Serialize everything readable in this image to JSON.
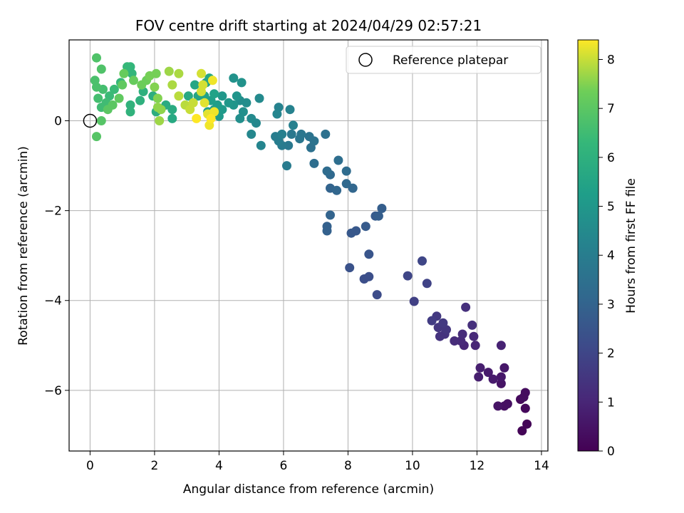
{
  "chart_data": {
    "type": "scatter",
    "title": "FOV centre drift starting at 2024/04/29 02:57:21",
    "xlabel": "Angular distance from reference (arcmin)",
    "ylabel": "Rotation from reference (arcmin)",
    "xlim": [
      -0.65,
      14.2
    ],
    "ylim": [
      -7.35,
      1.8
    ],
    "xticks": [
      "0",
      "2",
      "4",
      "6",
      "8",
      "10",
      "12",
      "14"
    ],
    "xtick_values": [
      0,
      2,
      4,
      6,
      8,
      10,
      12,
      14
    ],
    "yticks": [
      "−6",
      "−4",
      "−2",
      "0"
    ],
    "ytick_values": [
      -6,
      -4,
      -2,
      0
    ],
    "grid": true,
    "legend": {
      "placement": "top-right",
      "label": "Reference platepar"
    },
    "reference_point": {
      "x": 0,
      "y": 0
    },
    "colorbar": {
      "label": "Hours from first FF file",
      "colormap": "viridis",
      "range": [
        0,
        8.4
      ],
      "ticks": [
        "0",
        "1",
        "2",
        "3",
        "4",
        "5",
        "6",
        "7",
        "8"
      ],
      "tick_values": [
        0,
        1,
        2,
        3,
        4,
        5,
        6,
        7,
        8
      ]
    },
    "points": [
      [
        13.4,
        -6.9,
        0.1
      ],
      [
        13.55,
        -6.75,
        0.1
      ],
      [
        13.5,
        -6.4,
        0.2
      ],
      [
        13.35,
        -6.2,
        0.2
      ],
      [
        13.45,
        -6.15,
        0.3
      ],
      [
        13.5,
        -6.05,
        0.3
      ],
      [
        12.95,
        -6.3,
        0.4
      ],
      [
        12.85,
        -6.35,
        0.4
      ],
      [
        12.65,
        -6.35,
        0.5
      ],
      [
        12.75,
        -5.85,
        0.5
      ],
      [
        12.75,
        -5.7,
        0.6
      ],
      [
        12.85,
        -5.5,
        0.6
      ],
      [
        12.5,
        -5.75,
        0.7
      ],
      [
        12.35,
        -5.6,
        0.7
      ],
      [
        12.05,
        -5.7,
        0.8
      ],
      [
        12.1,
        -5.5,
        0.8
      ],
      [
        12.75,
        -5.0,
        0.9
      ],
      [
        11.95,
        -5.0,
        1.0
      ],
      [
        11.6,
        -5.0,
        1.0
      ],
      [
        11.5,
        -4.9,
        1.1
      ],
      [
        11.9,
        -4.8,
        1.1
      ],
      [
        11.55,
        -4.75,
        1.2
      ],
      [
        11.3,
        -4.9,
        1.2
      ],
      [
        11.85,
        -4.55,
        1.3
      ],
      [
        11.65,
        -4.15,
        1.3
      ],
      [
        11.0,
        -4.75,
        1.4
      ],
      [
        10.85,
        -4.8,
        1.4
      ],
      [
        11.05,
        -4.65,
        1.5
      ],
      [
        10.8,
        -4.6,
        1.5
      ],
      [
        10.95,
        -4.5,
        1.6
      ],
      [
        10.75,
        -4.35,
        1.6
      ],
      [
        10.6,
        -4.45,
        1.7
      ],
      [
        10.05,
        -4.02,
        1.8
      ],
      [
        10.45,
        -3.62,
        1.9
      ],
      [
        10.3,
        -3.12,
        2.0
      ],
      [
        9.85,
        -3.45,
        2.0
      ],
      [
        8.9,
        -3.87,
        2.2
      ],
      [
        8.5,
        -3.52,
        2.3
      ],
      [
        8.65,
        -3.47,
        2.3
      ],
      [
        8.05,
        -3.27,
        2.4
      ],
      [
        8.65,
        -2.97,
        2.5
      ],
      [
        8.1,
        -2.5,
        2.6
      ],
      [
        8.25,
        -2.45,
        2.6
      ],
      [
        8.55,
        -2.35,
        2.7
      ],
      [
        8.85,
        -2.12,
        2.7
      ],
      [
        8.95,
        -2.12,
        2.8
      ],
      [
        9.05,
        -1.95,
        2.8
      ],
      [
        7.35,
        -2.45,
        2.9
      ],
      [
        7.35,
        -2.35,
        2.9
      ],
      [
        7.45,
        -2.1,
        3.0
      ],
      [
        7.45,
        -1.5,
        3.0
      ],
      [
        7.65,
        -1.55,
        3.1
      ],
      [
        8.15,
        -1.5,
        3.1
      ],
      [
        7.95,
        -1.4,
        3.2
      ],
      [
        7.45,
        -1.2,
        3.2
      ],
      [
        7.35,
        -1.12,
        3.3
      ],
      [
        7.95,
        -1.12,
        3.3
      ],
      [
        7.7,
        -0.88,
        3.4
      ],
      [
        6.95,
        -0.95,
        3.4
      ],
      [
        7.3,
        -0.3,
        3.5
      ],
      [
        6.85,
        -0.6,
        3.5
      ],
      [
        6.95,
        -0.45,
        3.6
      ],
      [
        6.8,
        -0.35,
        3.6
      ],
      [
        6.5,
        -0.4,
        3.7
      ],
      [
        6.55,
        -0.3,
        3.7
      ],
      [
        6.25,
        -0.3,
        3.8
      ],
      [
        6.15,
        -0.55,
        3.8
      ],
      [
        6.1,
        -1.0,
        3.9
      ],
      [
        5.95,
        -0.55,
        3.9
      ],
      [
        5.85,
        -0.45,
        4.0
      ],
      [
        5.75,
        -0.35,
        4.0
      ],
      [
        5.95,
        -0.3,
        4.1
      ],
      [
        6.3,
        -0.1,
        4.1
      ],
      [
        6.2,
        0.25,
        4.2
      ],
      [
        5.85,
        0.3,
        4.2
      ],
      [
        5.8,
        0.15,
        4.3
      ],
      [
        5.3,
        -0.55,
        4.3
      ],
      [
        5.0,
        -0.3,
        4.4
      ],
      [
        5.15,
        -0.05,
        4.4
      ],
      [
        5.0,
        0.05,
        4.5
      ],
      [
        5.25,
        0.5,
        4.5
      ],
      [
        4.85,
        0.4,
        4.6
      ],
      [
        4.65,
        0.45,
        4.6
      ],
      [
        4.75,
        0.2,
        4.7
      ],
      [
        4.65,
        0.05,
        4.7
      ],
      [
        4.7,
        0.85,
        4.8
      ],
      [
        4.45,
        0.95,
        4.8
      ],
      [
        4.55,
        0.55,
        4.9
      ],
      [
        4.45,
        0.35,
        4.9
      ],
      [
        4.3,
        0.4,
        5.0
      ],
      [
        4.1,
        0.55,
        5.0
      ],
      [
        4.1,
        0.25,
        5.1
      ],
      [
        4.0,
        0.1,
        5.1
      ],
      [
        3.85,
        0.25,
        5.2
      ],
      [
        3.95,
        0.35,
        5.2
      ],
      [
        3.65,
        0.2,
        5.3
      ],
      [
        3.75,
        0.45,
        5.3
      ],
      [
        3.85,
        0.6,
        5.4
      ],
      [
        3.55,
        0.55,
        5.4
      ],
      [
        3.35,
        0.55,
        5.5
      ],
      [
        3.6,
        0.85,
        5.5
      ],
      [
        3.7,
        0.95,
        5.6
      ],
      [
        3.25,
        0.8,
        5.6
      ],
      [
        3.05,
        0.55,
        5.7
      ],
      [
        2.55,
        0.05,
        5.7
      ],
      [
        2.55,
        0.25,
        5.8
      ],
      [
        2.35,
        0.35,
        5.8
      ],
      [
        2.05,
        0.2,
        5.9
      ],
      [
        1.95,
        0.55,
        5.9
      ],
      [
        1.55,
        0.45,
        6.0
      ],
      [
        1.65,
        0.65,
        6.0
      ],
      [
        1.25,
        0.35,
        6.1
      ],
      [
        1.25,
        0.2,
        6.1
      ],
      [
        1.3,
        1.05,
        6.2
      ],
      [
        1.25,
        1.2,
        6.2
      ],
      [
        1.15,
        1.2,
        6.3
      ],
      [
        0.95,
        0.85,
        6.3
      ],
      [
        0.75,
        0.7,
        6.4
      ],
      [
        0.6,
        0.55,
        6.4
      ],
      [
        0.5,
        0.4,
        6.5
      ],
      [
        0.35,
        0.3,
        6.5
      ],
      [
        0.25,
        0.5,
        6.6
      ],
      [
        0.4,
        0.7,
        6.6
      ],
      [
        0.2,
        0.75,
        6.7
      ],
      [
        0.15,
        0.9,
        6.7
      ],
      [
        0.35,
        1.15,
        6.8
      ],
      [
        0.2,
        1.4,
        6.8
      ],
      [
        0.35,
        -0.0,
        6.9
      ],
      [
        0.2,
        -0.35,
        6.9
      ],
      [
        0.55,
        0.25,
        7.0
      ],
      [
        0.7,
        0.35,
        7.0
      ],
      [
        0.9,
        0.5,
        7.1
      ],
      [
        1.0,
        0.8,
        7.1
      ],
      [
        1.35,
        0.9,
        7.2
      ],
      [
        1.05,
        1.05,
        7.2
      ],
      [
        1.6,
        0.8,
        7.3
      ],
      [
        1.75,
        0.9,
        7.3
      ],
      [
        1.85,
        1.0,
        7.4
      ],
      [
        2.05,
        1.05,
        7.4
      ],
      [
        2.0,
        0.75,
        7.5
      ],
      [
        2.1,
        0.5,
        7.5
      ],
      [
        2.1,
        0.3,
        7.6
      ],
      [
        2.2,
        0.25,
        7.6
      ],
      [
        2.15,
        0.0,
        7.7
      ],
      [
        2.45,
        1.1,
        7.7
      ],
      [
        2.75,
        1.05,
        7.8
      ],
      [
        2.55,
        0.8,
        7.8
      ],
      [
        2.75,
        0.55,
        7.9
      ],
      [
        2.95,
        0.35,
        7.9
      ],
      [
        3.1,
        0.25,
        8.0
      ],
      [
        3.2,
        0.4,
        8.0
      ],
      [
        3.45,
        0.65,
        8.1
      ],
      [
        3.5,
        0.8,
        8.1
      ],
      [
        3.45,
        1.05,
        8.1
      ],
      [
        3.55,
        0.4,
        8.2
      ],
      [
        3.65,
        0.15,
        8.2
      ],
      [
        3.7,
        -0.1,
        8.3
      ],
      [
        3.85,
        0.2,
        8.3
      ],
      [
        3.8,
        0.9,
        8.3
      ],
      [
        3.3,
        0.05,
        8.4
      ],
      [
        3.75,
        0.05,
        8.4
      ]
    ]
  }
}
